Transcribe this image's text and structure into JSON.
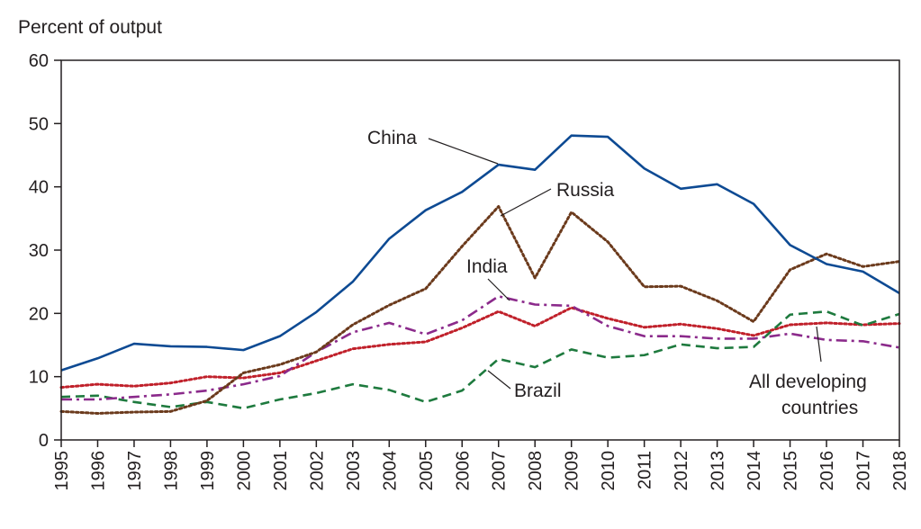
{
  "chart_data": {
    "type": "line",
    "ylabel": "Percent of output",
    "ylim": [
      0,
      60
    ],
    "yticks": [
      0,
      10,
      20,
      30,
      40,
      50,
      60
    ],
    "x": [
      1995,
      1996,
      1997,
      1998,
      1999,
      2000,
      2001,
      2002,
      2003,
      2004,
      2005,
      2006,
      2007,
      2008,
      2009,
      2010,
      2011,
      2012,
      2013,
      2014,
      2015,
      2016,
      2017,
      2018
    ],
    "series": [
      {
        "name": "China",
        "color": "#0d4a93",
        "style": "solid",
        "values": [
          11.0,
          12.9,
          15.2,
          14.8,
          14.7,
          14.2,
          16.4,
          20.2,
          25.0,
          31.8,
          36.3,
          39.2,
          43.5,
          42.7,
          48.1,
          47.9,
          42.9,
          39.7,
          40.4,
          37.3,
          30.8,
          27.8,
          26.6,
          23.2
        ]
      },
      {
        "name": "Russia",
        "color": "#6b3a1c",
        "style": "dotted",
        "values": [
          4.5,
          4.2,
          4.4,
          4.5,
          6.2,
          10.6,
          11.9,
          13.9,
          18.2,
          21.3,
          23.9,
          30.6,
          36.9,
          25.6,
          36.0,
          31.3,
          24.2,
          24.3,
          22.0,
          18.7,
          26.9,
          29.4,
          27.4,
          28.2
        ]
      },
      {
        "name": "India",
        "color": "#8b2a8b",
        "style": "dashdot",
        "values": [
          6.4,
          6.4,
          6.8,
          7.2,
          7.8,
          8.8,
          10.1,
          13.9,
          17.0,
          18.5,
          16.7,
          18.9,
          22.7,
          21.4,
          21.2,
          18.0,
          16.4,
          16.4,
          16.0,
          16.0,
          16.8,
          15.8,
          15.6,
          14.6
        ]
      },
      {
        "name": "Brazil",
        "color": "#1e7a3e",
        "style": "dashed",
        "values": [
          6.8,
          7.0,
          6.0,
          5.2,
          6.0,
          5.0,
          6.4,
          7.4,
          8.8,
          7.9,
          6.0,
          7.8,
          12.8,
          11.5,
          14.3,
          13.0,
          13.4,
          15.1,
          14.5,
          14.7,
          19.8,
          20.3,
          18.1,
          19.9
        ]
      },
      {
        "name": "All developing countries",
        "color": "#c0202a",
        "style": "dotted",
        "values": [
          8.3,
          8.8,
          8.5,
          9.0,
          10.0,
          9.8,
          10.6,
          12.5,
          14.4,
          15.1,
          15.5,
          17.7,
          20.3,
          18.0,
          20.9,
          19.2,
          17.8,
          18.3,
          17.6,
          16.5,
          18.2,
          18.5,
          18.2,
          18.4
        ]
      }
    ],
    "annotations": [
      {
        "text": "China",
        "series": "China"
      },
      {
        "text": "Russia",
        "series": "Russia"
      },
      {
        "text": "India",
        "series": "India"
      },
      {
        "text": "Brazil",
        "series": "Brazil"
      },
      {
        "text": "All developing",
        "series": "All developing countries"
      },
      {
        "text": "countries",
        "series": "All developing countries"
      }
    ],
    "grid": false,
    "legend": "none"
  }
}
